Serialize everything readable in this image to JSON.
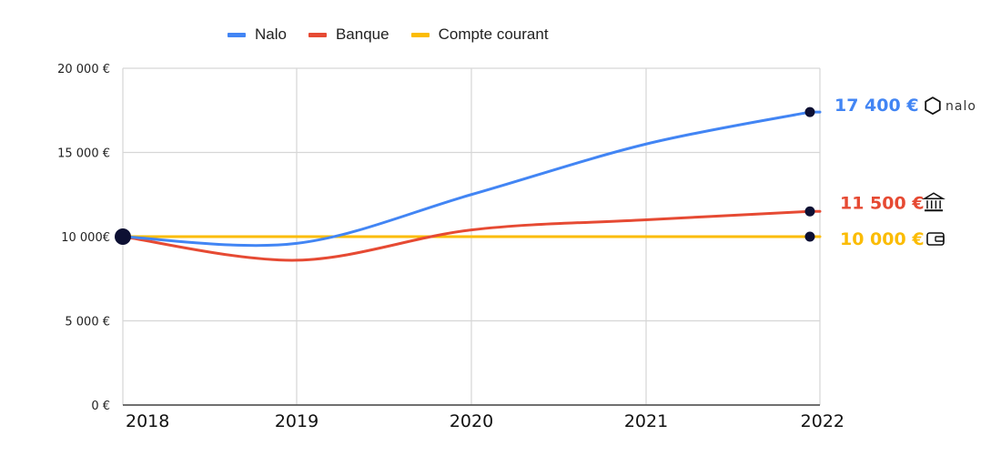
{
  "chart_data": {
    "type": "line",
    "x": [
      "2018",
      "2019",
      "2020",
      "2021",
      "2022"
    ],
    "ylim": [
      0,
      20000
    ],
    "yticks": [
      0,
      5000,
      10000,
      15000,
      20000
    ],
    "ytick_labels": [
      "0 €",
      "5 000 €",
      "10 000€",
      "15 000 €",
      "20 000 €"
    ],
    "grid": true,
    "legend_position": "top-center",
    "series": [
      {
        "name": "Nalo",
        "color": "#4285f4",
        "values": [
          10000,
          9600,
          12500,
          15500,
          17400
        ],
        "end_label": "17 400 €",
        "end_icon": "nalo-logo-icon",
        "end_brand": "nalo"
      },
      {
        "name": "Banque",
        "color": "#e64a33",
        "values": [
          10000,
          8600,
          10400,
          11000,
          11500
        ],
        "end_label": "11 500 €",
        "end_icon": "bank-icon"
      },
      {
        "name": "Compte courant",
        "color": "#fbbc04",
        "values": [
          10000,
          10000,
          10000,
          10000,
          10000
        ],
        "end_label": "10 000 €",
        "end_icon": "wallet-icon"
      }
    ]
  }
}
